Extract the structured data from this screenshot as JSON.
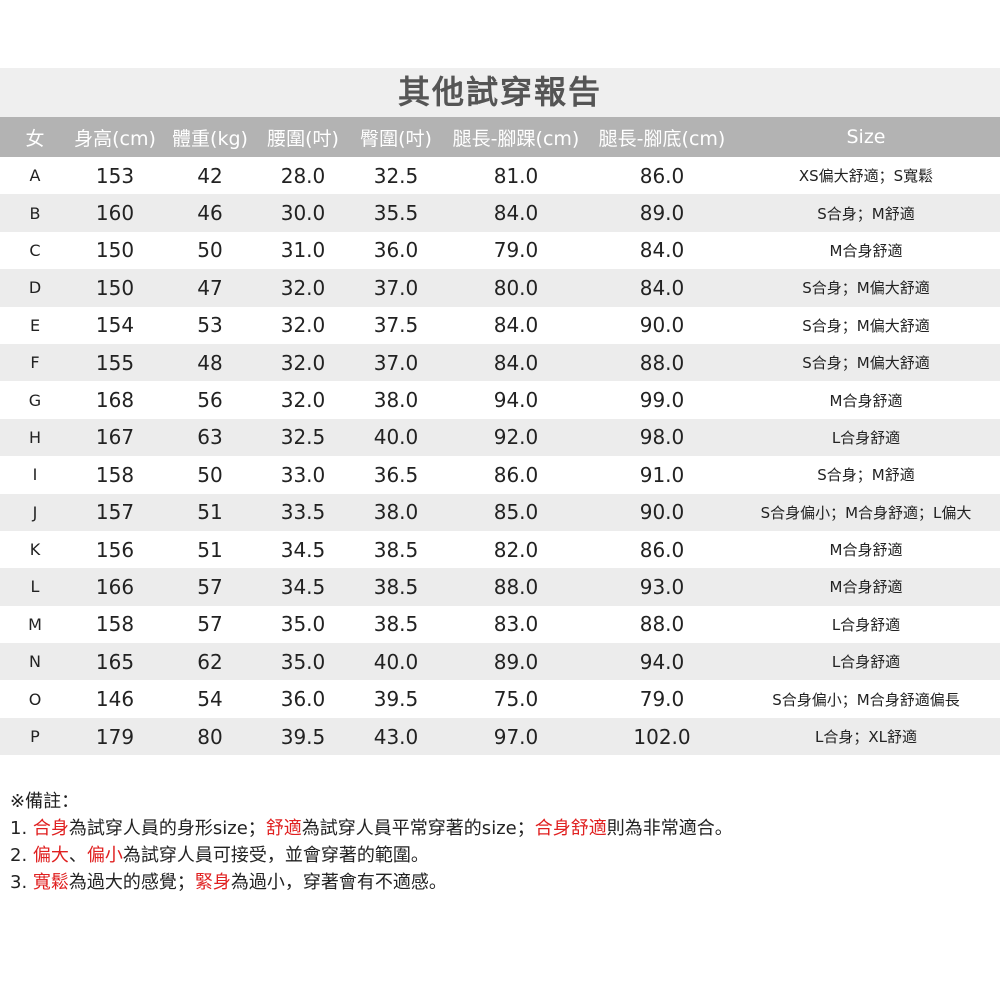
{
  "title": "其他試穿報告",
  "columns": [
    "女",
    "身高(cm)",
    "體重(kg)",
    "腰圍(吋)",
    "臀圍(吋)",
    "腿長-腳踝(cm)",
    "腿長-腳底(cm)",
    "Size"
  ],
  "rows": [
    [
      "A",
      "153",
      "42",
      "28.0",
      "32.5",
      "81.0",
      "86.0",
      "XS偏大舒適；S寬鬆"
    ],
    [
      "B",
      "160",
      "46",
      "30.0",
      "35.5",
      "84.0",
      "89.0",
      "S合身；M舒適"
    ],
    [
      "C",
      "150",
      "50",
      "31.0",
      "36.0",
      "79.0",
      "84.0",
      "M合身舒適"
    ],
    [
      "D",
      "150",
      "47",
      "32.0",
      "37.0",
      "80.0",
      "84.0",
      "S合身；M偏大舒適"
    ],
    [
      "E",
      "154",
      "53",
      "32.0",
      "37.5",
      "84.0",
      "90.0",
      "S合身；M偏大舒適"
    ],
    [
      "F",
      "155",
      "48",
      "32.0",
      "37.0",
      "84.0",
      "88.0",
      "S合身；M偏大舒適"
    ],
    [
      "G",
      "168",
      "56",
      "32.0",
      "38.0",
      "94.0",
      "99.0",
      "M合身舒適"
    ],
    [
      "H",
      "167",
      "63",
      "32.5",
      "40.0",
      "92.0",
      "98.0",
      "L合身舒適"
    ],
    [
      "I",
      "158",
      "50",
      "33.0",
      "36.5",
      "86.0",
      "91.0",
      "S合身；M舒適"
    ],
    [
      "J",
      "157",
      "51",
      "33.5",
      "38.0",
      "85.0",
      "90.0",
      "S合身偏小；M合身舒適；L偏大"
    ],
    [
      "K",
      "156",
      "51",
      "34.5",
      "38.5",
      "82.0",
      "86.0",
      "M合身舒適"
    ],
    [
      "L",
      "166",
      "57",
      "34.5",
      "38.5",
      "88.0",
      "93.0",
      "M合身舒適"
    ],
    [
      "M",
      "158",
      "57",
      "35.0",
      "38.5",
      "83.0",
      "88.0",
      "L合身舒適"
    ],
    [
      "N",
      "165",
      "62",
      "35.0",
      "40.0",
      "89.0",
      "94.0",
      "L合身舒適"
    ],
    [
      "O",
      "146",
      "54",
      "36.0",
      "39.5",
      "75.0",
      "79.0",
      "S合身偏小；M合身舒適偏長"
    ],
    [
      "P",
      "179",
      "80",
      "39.5",
      "43.0",
      "97.0",
      "102.0",
      "L合身；XL舒適"
    ]
  ],
  "notes": {
    "heading": "※備註：",
    "lines": [
      [
        {
          "t": "1. ",
          "r": false
        },
        {
          "t": "合身",
          "r": true
        },
        {
          "t": "為試穿人員的身形size；",
          "r": false
        },
        {
          "t": "舒適",
          "r": true
        },
        {
          "t": "為試穿人員平常穿著的size；",
          "r": false
        },
        {
          "t": "合身舒適",
          "r": true
        },
        {
          "t": "則為非常適合。",
          "r": false
        }
      ],
      [
        {
          "t": "2. ",
          "r": false
        },
        {
          "t": "偏大",
          "r": true
        },
        {
          "t": "、",
          "r": false
        },
        {
          "t": "偏小",
          "r": true
        },
        {
          "t": "為試穿人員可接受，並會穿著的範圍。",
          "r": false
        }
      ],
      [
        {
          "t": "3. ",
          "r": false
        },
        {
          "t": "寬鬆",
          "r": true
        },
        {
          "t": "為過大的感覺；",
          "r": false
        },
        {
          "t": "緊身",
          "r": true
        },
        {
          "t": "為過小，穿著會有不適感。",
          "r": false
        }
      ]
    ]
  },
  "colors": {
    "highlight": "#e02020",
    "header_bg": "#b3b3b3",
    "title_bg": "#efefef",
    "stripe": "#ececec"
  }
}
